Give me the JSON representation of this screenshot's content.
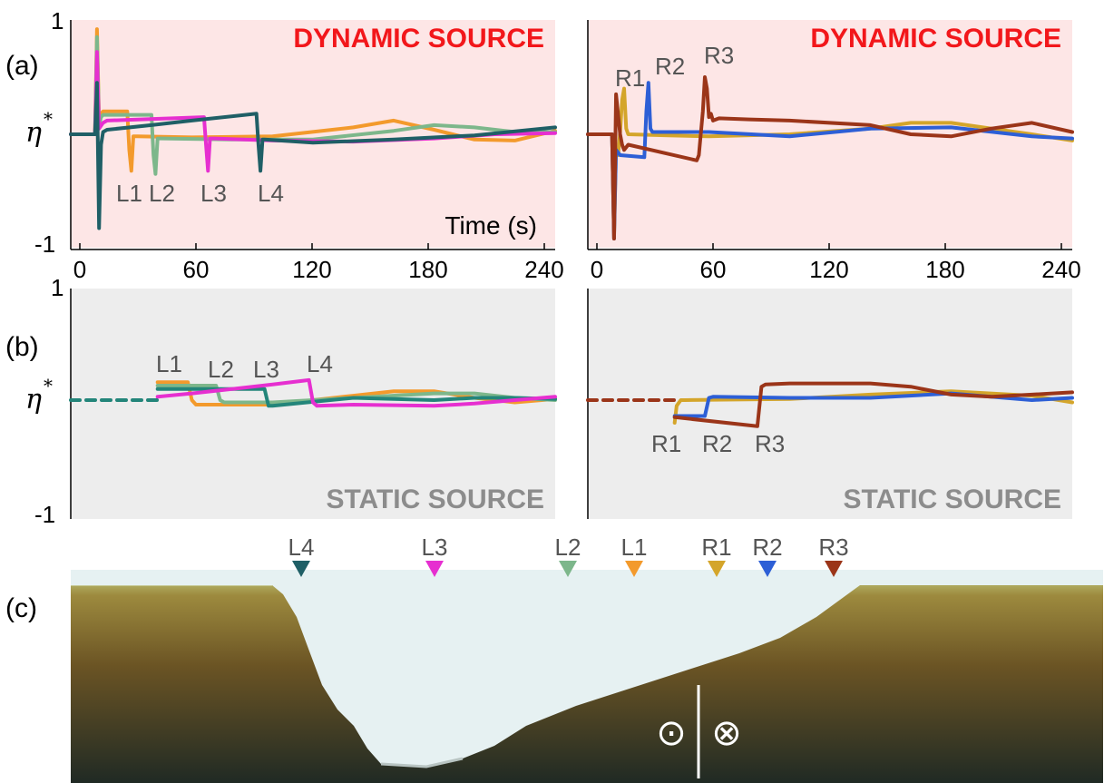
{
  "panel_letters": {
    "a": "(a)",
    "b": "(b)",
    "c": "(c)"
  },
  "annotations": {
    "dynamic_source": "DYNAMIC SOURCE",
    "static_source": "STATIC SOURCE",
    "time_label": "Time (s)",
    "eta_label": "η",
    "eta_sup": "*"
  },
  "axes": {
    "x_ticks": [
      "0",
      "60",
      "120",
      "180",
      "240"
    ],
    "y_tick_top": "1",
    "y_tick_bottom": "-1"
  },
  "colors": {
    "L1": "#f39a2c",
    "L2": "#7db78b",
    "L3": "#e62fd0",
    "L4": "#1f5f66",
    "L4_static": "#23857a",
    "R1": "#d4a52a",
    "R2": "#2d5fd6",
    "R3": "#9b3519",
    "dynamic_bg": "#fde6e6",
    "static_bg": "#ededed"
  },
  "chart_data": [
    {
      "type": "line",
      "panel": "(a) left",
      "title": "DYNAMIC SOURCE",
      "xlabel": "Time (s)",
      "xlim": [
        0,
        240
      ],
      "ylim": [
        -1,
        1
      ],
      "annotation_labels": [
        "L1",
        "L2",
        "L3",
        "L4"
      ],
      "series": [
        {
          "name": "L1",
          "x": [
            0,
            12,
            13,
            14,
            15,
            16,
            28,
            29,
            30,
            31,
            32,
            33,
            60,
            100,
            140,
            160,
            180,
            200,
            220,
            240
          ],
          "y": [
            0,
            0,
            0.92,
            0.1,
            0.18,
            0.2,
            0.2,
            -0.15,
            -0.35,
            -0.02,
            -0.02,
            -0.02,
            -0.03,
            -0.02,
            0.06,
            0.12,
            0.04,
            -0.05,
            -0.06,
            0.03
          ]
        },
        {
          "name": "L2",
          "x": [
            0,
            12,
            13,
            14,
            15,
            16,
            40,
            41,
            42,
            43,
            44,
            45,
            80,
            120,
            160,
            180,
            200,
            220,
            240
          ],
          "y": [
            0,
            0,
            0.85,
            0.08,
            0.15,
            0.17,
            0.17,
            -0.2,
            -0.38,
            -0.04,
            -0.04,
            -0.04,
            -0.05,
            -0.05,
            0.03,
            0.08,
            0.06,
            0.02,
            0.02
          ]
        },
        {
          "name": "L3",
          "x": [
            0,
            12,
            13,
            14,
            16,
            18,
            66,
            67,
            68,
            69,
            70,
            71,
            100,
            140,
            180,
            210,
            240
          ],
          "y": [
            0,
            0,
            0.72,
            0.05,
            0.1,
            0.12,
            0.15,
            -0.1,
            -0.35,
            -0.04,
            -0.04,
            -0.04,
            -0.06,
            -0.07,
            -0.04,
            0.0,
            0.01
          ]
        },
        {
          "name": "L4",
          "x": [
            0,
            12,
            13,
            14,
            15,
            16,
            18,
            40,
            60,
            92,
            93,
            94,
            95,
            96,
            120,
            160,
            200,
            240
          ],
          "y": [
            0,
            0,
            0.45,
            -0.9,
            -0.1,
            0.02,
            0.04,
            0.08,
            0.12,
            0.18,
            -0.1,
            -0.35,
            -0.05,
            -0.05,
            -0.08,
            -0.05,
            -0.01,
            0.06
          ]
        }
      ]
    },
    {
      "type": "line",
      "panel": "(a) right",
      "title": "DYNAMIC SOURCE",
      "xlim": [
        0,
        240
      ],
      "ylim": [
        -1,
        1
      ],
      "annotation_labels": [
        "R1",
        "R2",
        "R3"
      ],
      "series": [
        {
          "name": "R1",
          "x": [
            0,
            12,
            13,
            14,
            15,
            16,
            17,
            18,
            19,
            20,
            40,
            60,
            100,
            140,
            160,
            180,
            200,
            220,
            240
          ],
          "y": [
            0,
            0,
            -1,
            -0.15,
            -0.2,
            0.02,
            0.3,
            0.4,
            0.05,
            0.0,
            -0.01,
            -0.02,
            0.0,
            0.05,
            0.1,
            0.1,
            0.05,
            0.0,
            -0.06
          ]
        },
        {
          "name": "R2",
          "x": [
            0,
            12,
            13,
            14,
            16,
            28,
            29,
            30,
            31,
            32,
            60,
            100,
            140,
            180,
            220,
            240
          ],
          "y": [
            0,
            0,
            -1,
            -0.15,
            -0.2,
            -0.22,
            0.2,
            0.45,
            0.05,
            0.02,
            0.02,
            -0.02,
            0.05,
            0.06,
            -0.02,
            -0.04
          ]
        },
        {
          "name": "R3",
          "x": [
            0,
            12,
            13,
            14,
            16,
            17,
            18,
            20,
            54,
            55,
            57,
            58,
            59,
            60,
            61,
            62,
            65,
            80,
            100,
            140,
            160,
            180,
            200,
            220,
            240
          ],
          "y": [
            0,
            0,
            -1,
            0.35,
            0.0,
            -0.1,
            -0.15,
            -0.1,
            -0.25,
            -0.2,
            0.2,
            0.5,
            0.4,
            0.15,
            0.18,
            0.12,
            0.14,
            0.13,
            0.12,
            0.08,
            0.0,
            -0.02,
            0.05,
            0.1,
            0.02
          ]
        }
      ]
    },
    {
      "type": "line",
      "panel": "(b) left",
      "title": "STATIC SOURCE",
      "xlim": [
        0,
        240
      ],
      "ylim": [
        -1,
        1
      ],
      "annotation_labels": [
        "L1",
        "L2",
        "L3",
        "L4"
      ],
      "series": [
        {
          "name": "L1",
          "x": [
            43,
            58,
            60,
            62,
            100,
            140,
            160,
            180,
            200,
            220,
            240
          ],
          "y": [
            0.16,
            0.16,
            0.0,
            -0.04,
            -0.04,
            0.04,
            0.08,
            0.08,
            0.02,
            -0.02,
            0.01
          ]
        },
        {
          "name": "L2",
          "x": [
            43,
            72,
            74,
            76,
            100,
            140,
            180,
            200,
            220,
            240
          ],
          "y": [
            0.13,
            0.13,
            0.0,
            -0.02,
            -0.02,
            0.02,
            0.06,
            0.06,
            0.02,
            0.0
          ]
        },
        {
          "name": "L3",
          "x": [
            43,
            96,
            98,
            100,
            140,
            180,
            200,
            220,
            240
          ],
          "y": [
            0.1,
            0.1,
            -0.05,
            -0.05,
            0.02,
            0.0,
            0.02,
            0.02,
            0.01
          ]
        },
        {
          "name": "L4",
          "x": [
            43,
            60,
            80,
            100,
            118,
            120,
            122,
            140,
            180,
            200,
            220,
            240
          ],
          "y": [
            0.03,
            0.06,
            0.1,
            0.14,
            0.18,
            -0.02,
            -0.05,
            -0.04,
            -0.05,
            -0.03,
            0.0,
            0.03
          ]
        },
        {
          "name": "baseline",
          "x": [
            0,
            43
          ],
          "y": [
            0,
            0
          ]
        }
      ]
    },
    {
      "type": "line",
      "panel": "(b) right",
      "title": "STATIC SOURCE",
      "xlim": [
        0,
        240
      ],
      "ylim": [
        -1,
        1
      ],
      "annotation_labels": [
        "R1",
        "R2",
        "R3"
      ],
      "series": [
        {
          "name": "R1",
          "x": [
            43,
            44,
            46,
            48,
            100,
            140,
            180,
            220,
            240
          ],
          "y": [
            -0.2,
            -0.05,
            0.0,
            0.0,
            0.01,
            0.05,
            0.08,
            0.04,
            -0.02
          ]
        },
        {
          "name": "R2",
          "x": [
            43,
            58,
            60,
            62,
            100,
            140,
            180,
            220,
            240
          ],
          "y": [
            -0.14,
            -0.14,
            0.02,
            0.03,
            0.02,
            0.02,
            0.06,
            0.0,
            0.02
          ]
        },
        {
          "name": "R3",
          "x": [
            43,
            84,
            86,
            88,
            100,
            140,
            160,
            180,
            200,
            220,
            240
          ],
          "y": [
            -0.15,
            -0.23,
            0.12,
            0.14,
            0.15,
            0.15,
            0.12,
            0.05,
            0.03,
            0.05,
            0.07
          ]
        },
        {
          "name": "baseline",
          "x": [
            0,
            43
          ],
          "y": [
            0,
            0
          ]
        }
      ]
    }
  ],
  "cross_section": {
    "stations": [
      "L4",
      "L3",
      "L2",
      "L1",
      "R1",
      "R2",
      "R3"
    ],
    "symbols": {
      "out_of_page": "⊙",
      "into_page": "⊗"
    }
  }
}
